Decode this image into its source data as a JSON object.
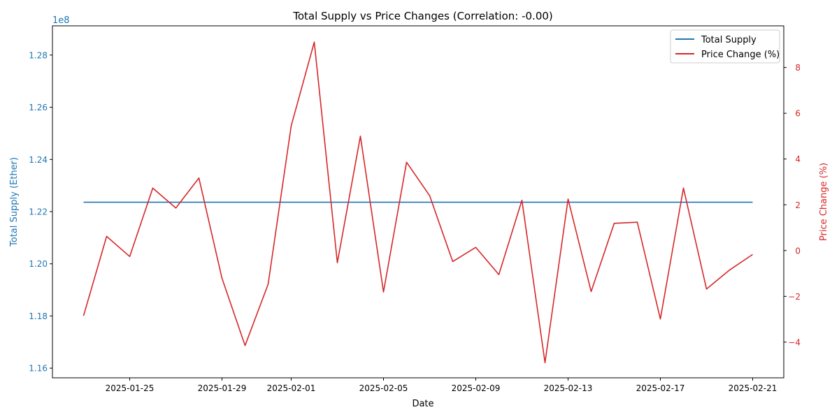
{
  "chart_data": {
    "type": "line",
    "title": "Total Supply vs Price Changes (Correlation: -0.00)",
    "xlabel": "Date",
    "ylabel_left": "Total Supply (Ether)",
    "ylabel_right": "Price Change (%)",
    "left_offset_text": "1e8",
    "grid": false,
    "legend_position": "top-right",
    "x": [
      "2025-01-23",
      "2025-01-24",
      "2025-01-25",
      "2025-01-26",
      "2025-01-27",
      "2025-01-28",
      "2025-01-29",
      "2025-01-30",
      "2025-01-31",
      "2025-02-01",
      "2025-02-02",
      "2025-02-03",
      "2025-02-04",
      "2025-02-05",
      "2025-02-06",
      "2025-02-07",
      "2025-02-08",
      "2025-02-09",
      "2025-02-10",
      "2025-02-11",
      "2025-02-12",
      "2025-02-13",
      "2025-02-14",
      "2025-02-15",
      "2025-02-16",
      "2025-02-17",
      "2025-02-18",
      "2025-02-19",
      "2025-02-20",
      "2025-02-21"
    ],
    "x_ticks": [
      "2025-01-25",
      "2025-01-29",
      "2025-02-01",
      "2025-02-05",
      "2025-02-09",
      "2025-02-13",
      "2025-02-17",
      "2025-02-21"
    ],
    "ylim_left": [
      1.1563,
      1.2912
    ],
    "yticks_left": [
      "1.16",
      "1.18",
      "1.20",
      "1.22",
      "1.24",
      "1.26",
      "1.28"
    ],
    "ylim_right": [
      -5.56,
      9.82
    ],
    "yticks_right": [
      "−4",
      "−2",
      "0",
      "2",
      "4",
      "6",
      "8"
    ],
    "series": [
      {
        "name": "Total Supply",
        "axis": "left",
        "color": "#1f77b4",
        "values": [
          1.2236,
          1.2236,
          1.2236,
          1.2236,
          1.2236,
          1.2236,
          1.2236,
          1.2236,
          1.2236,
          1.2236,
          1.2236,
          1.2236,
          1.2236,
          1.2236,
          1.2236,
          1.2236,
          1.2236,
          1.2236,
          1.2236,
          1.2236,
          1.2236,
          1.2236,
          1.2236,
          1.2236,
          1.2236,
          1.2236,
          1.2236,
          1.2236,
          1.2236,
          1.2236
        ]
      },
      {
        "name": "Price Change (%)",
        "axis": "right",
        "color": "#d62728",
        "values": [
          -2.85,
          0.62,
          -0.26,
          2.73,
          1.86,
          3.17,
          -1.21,
          -4.15,
          -1.47,
          5.45,
          9.11,
          -0.53,
          5.0,
          -1.81,
          3.86,
          2.4,
          -0.48,
          0.14,
          -1.05,
          2.2,
          -4.9,
          2.25,
          -1.79,
          1.19,
          1.24,
          -2.99,
          2.73,
          -1.68,
          -0.85,
          -0.17
        ]
      }
    ]
  }
}
